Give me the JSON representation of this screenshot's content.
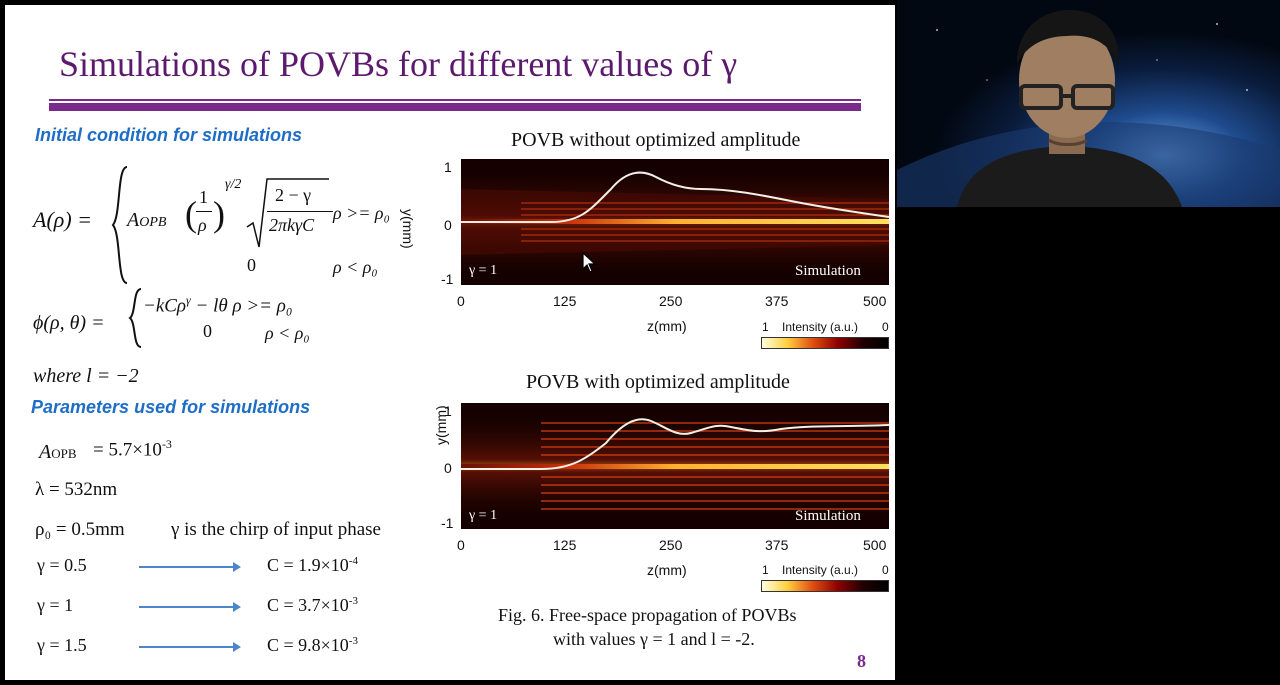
{
  "slide": {
    "title": "Simulations of POVBs for different values of γ",
    "heading1": "Initial condition for simulations",
    "heading2": "Parameters used for simulations",
    "eq_A_lhs": "A(ρ) =",
    "eq_A_coef": "A",
    "eq_A_sub": "OPB",
    "eq_A_frac_num": "1",
    "eq_A_frac_den": "ρ",
    "eq_A_exp": "γ/2",
    "eq_A_sqrt_num": "2 − γ",
    "eq_A_sqrt_den": "2πkγC",
    "eq_A_cond1": "ρ >= ρ₀",
    "eq_A_zero": "0",
    "eq_A_cond2": "ρ <  ρ₀",
    "eq_phi_lhs": "ϕ(ρ, θ) =",
    "eq_phi_top": "−kCρ",
    "eq_phi_top_exp": "γ",
    "eq_phi_top_rest": " − lθ  ρ >= ρ₀",
    "eq_phi_zero": "0",
    "eq_phi_cond2": "ρ < ρ₀",
    "where": "where  l = −2",
    "param_aopb": "A",
    "param_aopb_sub": "OPB",
    "param_aopb_val": "=  5.7×10",
    "param_aopb_exp": "-3",
    "param_lambda": "λ  =  532nm",
    "param_rho0": "ρ₀  = 0.5mm",
    "param_chirp": "γ is the chirp of input phase",
    "rows": [
      {
        "gamma": "γ = 0.5",
        "c": "C = 1.9×10",
        "exp": "-4"
      },
      {
        "gamma": "γ = 1",
        "c": "C = 3.7×10",
        "exp": "-3"
      },
      {
        "gamma": "γ = 1.5",
        "c": "C = 9.8×10",
        "exp": "-3"
      }
    ],
    "plot1_title": "POVB without optimized amplitude",
    "plot2_title": "POVB with optimized amplitude",
    "ylabel": "y(mm)",
    "xlabel": "z(mm)",
    "yticks": [
      "1",
      "0",
      "-1"
    ],
    "xticks": [
      "0",
      "125",
      "250",
      "375",
      "500"
    ],
    "gamma_label": "γ = 1",
    "sim_label": "Simulation",
    "cbar_left": "1",
    "cbar_mid": "Intensity (a.u.)",
    "cbar_right": "0",
    "caption1": "Fig. 6. Free-space propagation of POVBs",
    "caption2": "with values γ = 1 and l = -2.",
    "page_number": "8"
  },
  "colors": {
    "title": "#5b1a6e",
    "heading": "#1e6ec8",
    "rule": "#7a2a8a",
    "arrow": "#4a86c8",
    "page_number": "#7a2a8a"
  }
}
